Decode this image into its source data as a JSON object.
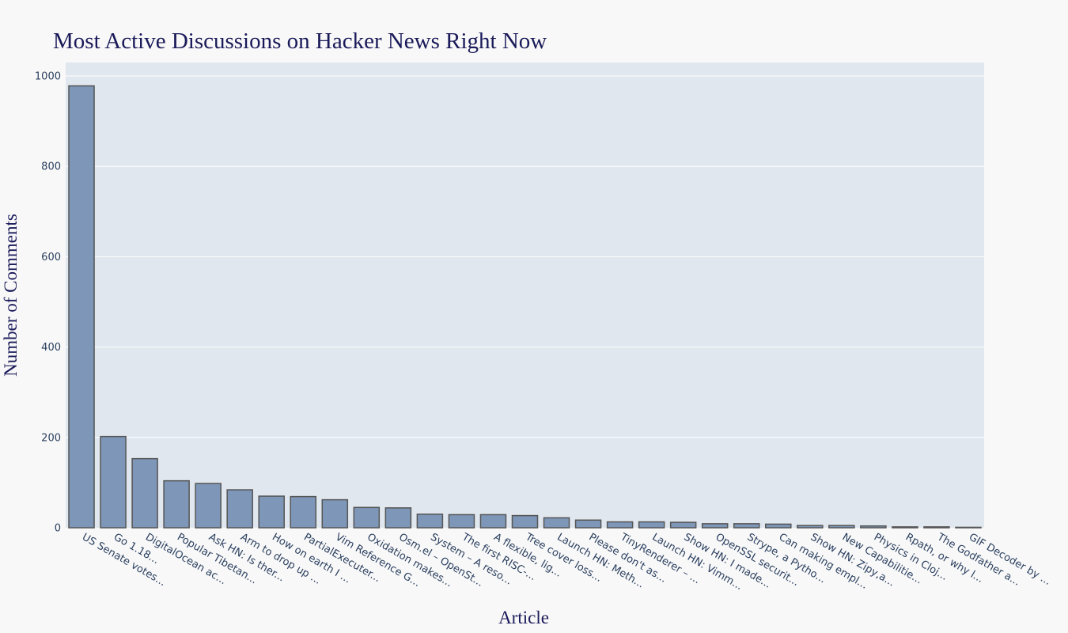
{
  "chart_data": {
    "type": "bar",
    "title": "Most Active Discussions on Hacker News Right Now",
    "xlabel": "Article",
    "ylabel": "Number of Comments",
    "ylim": [
      0,
      1000
    ],
    "yticks": [
      0,
      200,
      400,
      600,
      800,
      1000
    ],
    "grid": true,
    "categories": [
      "US Senate votes...",
      "Go 1.18...",
      "DigitalOcean ac...",
      "Popular Tibetan...",
      "Ask HN: Is ther...",
      "Arm to drop up ...",
      "How on earth I ...",
      "PartialExecuter...",
      "Vim Reference G...",
      "Oxidation makes...",
      "Osm.el – OpenSt...",
      "System – A reso...",
      "The first RISC-...",
      "A flexible, lig...",
      "Tree cover loss...",
      "Launch HN: Meth...",
      "Please don't as...",
      "TinyRenderer – ...",
      "Launch HN: Vimm...",
      "Show HN: I made...",
      "OpenSSL securit...",
      "Strype, a Pytho...",
      "Can making empl...",
      "Show HN: Zipy,a...",
      "New Capabilitie...",
      "Physics in Cloj...",
      "Rpath, or why l...",
      "The Godfather a...",
      "GIF Decoder by ..."
    ],
    "values": [
      978,
      202,
      153,
      104,
      98,
      84,
      70,
      69,
      62,
      45,
      44,
      30,
      29,
      29,
      27,
      22,
      17,
      13,
      13,
      12,
      9,
      9,
      8,
      5,
      5,
      4,
      2,
      2,
      1
    ],
    "colors": {
      "bar": "#7e97b8",
      "bar_outline": "#555555",
      "plot_bg": "#e0e7ef",
      "paper_bg": "#f8f8f8",
      "grid": "#ffffff",
      "tick_text": "#2a3f5f",
      "title_text": "#1a1a5a"
    }
  }
}
